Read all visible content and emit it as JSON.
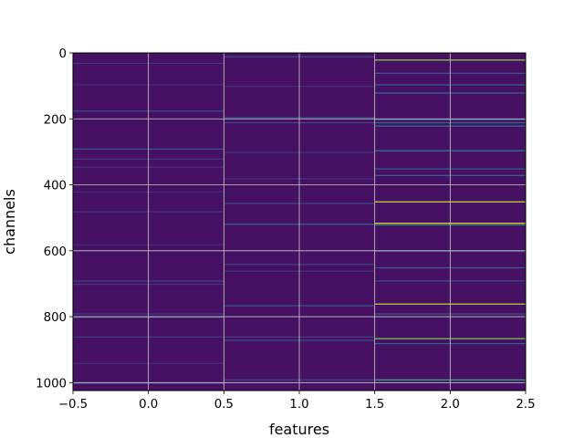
{
  "chart_data": {
    "type": "heatmap",
    "colormap": "viridis",
    "xlabel": "features",
    "ylabel": "channels",
    "xlim": [
      -0.5,
      2.5
    ],
    "ylim": [
      1024,
      0
    ],
    "y_inverted": true,
    "grid": true,
    "n_rows": 1024,
    "n_cols": 3,
    "x_ticks": [
      {
        "value": -0.5,
        "label": "−0.5"
      },
      {
        "value": 0.0,
        "label": "0.0"
      },
      {
        "value": 0.5,
        "label": "0.5"
      },
      {
        "value": 1.0,
        "label": "1.0"
      },
      {
        "value": 1.5,
        "label": "1.5"
      },
      {
        "value": 2.0,
        "label": "2.0"
      },
      {
        "value": 2.5,
        "label": "2.5"
      }
    ],
    "y_ticks": [
      {
        "value": 0,
        "label": "0"
      },
      {
        "value": 200,
        "label": "200"
      },
      {
        "value": 400,
        "label": "400"
      },
      {
        "value": 600,
        "label": "600"
      },
      {
        "value": 800,
        "label": "800"
      },
      {
        "value": 1000,
        "label": "1000"
      }
    ],
    "background_level": 0.06,
    "columns": [
      {
        "feature": 0,
        "highlights": [
          {
            "channel": 30,
            "level": 0.18
          },
          {
            "channel": 95,
            "level": 0.16
          },
          {
            "channel": 175,
            "level": 0.28
          },
          {
            "channel": 290,
            "level": 0.32
          },
          {
            "channel": 320,
            "level": 0.2
          },
          {
            "channel": 345,
            "level": 0.18
          },
          {
            "channel": 420,
            "level": 0.16
          },
          {
            "channel": 480,
            "level": 0.2
          },
          {
            "channel": 580,
            "level": 0.16
          },
          {
            "channel": 690,
            "level": 0.26
          },
          {
            "channel": 700,
            "level": 0.2
          },
          {
            "channel": 790,
            "level": 0.22
          },
          {
            "channel": 800,
            "level": 0.34
          },
          {
            "channel": 860,
            "level": 0.22
          },
          {
            "channel": 940,
            "level": 0.16
          },
          {
            "channel": 1000,
            "level": 0.3
          }
        ]
      },
      {
        "feature": 1,
        "highlights": [
          {
            "channel": 10,
            "level": 0.3
          },
          {
            "channel": 100,
            "level": 0.16
          },
          {
            "channel": 195,
            "level": 0.36
          },
          {
            "channel": 210,
            "level": 0.26
          },
          {
            "channel": 300,
            "level": 0.2
          },
          {
            "channel": 380,
            "level": 0.2
          },
          {
            "channel": 455,
            "level": 0.26
          },
          {
            "channel": 518,
            "level": 0.42
          },
          {
            "channel": 640,
            "level": 0.26
          },
          {
            "channel": 660,
            "level": 0.2
          },
          {
            "channel": 765,
            "level": 0.34
          },
          {
            "channel": 860,
            "level": 0.22
          },
          {
            "channel": 870,
            "level": 0.32
          },
          {
            "channel": 990,
            "level": 0.26
          }
        ]
      },
      {
        "feature": 2,
        "highlights": [
          {
            "channel": 20,
            "level": 0.88
          },
          {
            "channel": 60,
            "level": 0.36
          },
          {
            "channel": 95,
            "level": 0.4
          },
          {
            "channel": 120,
            "level": 0.45
          },
          {
            "channel": 200,
            "level": 0.55
          },
          {
            "channel": 210,
            "level": 0.42
          },
          {
            "channel": 220,
            "level": 0.48
          },
          {
            "channel": 295,
            "level": 0.52
          },
          {
            "channel": 350,
            "level": 0.36
          },
          {
            "channel": 370,
            "level": 0.4
          },
          {
            "channel": 450,
            "level": 0.95
          },
          {
            "channel": 515,
            "level": 0.98
          },
          {
            "channel": 520,
            "level": 0.6
          },
          {
            "channel": 600,
            "level": 0.3
          },
          {
            "channel": 650,
            "level": 0.36
          },
          {
            "channel": 690,
            "level": 0.28
          },
          {
            "channel": 760,
            "level": 0.92
          },
          {
            "channel": 790,
            "level": 0.36
          },
          {
            "channel": 865,
            "level": 0.85
          },
          {
            "channel": 880,
            "level": 0.4
          },
          {
            "channel": 990,
            "level": 0.72
          }
        ]
      }
    ]
  }
}
